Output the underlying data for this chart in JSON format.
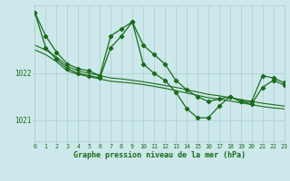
{
  "background_color": "#cce8ea",
  "grid_color": "#aaccce",
  "line_color": "#1a6b1a",
  "xlabel": "Graphe pression niveau de la mer (hPa)",
  "ylim": [
    1020.55,
    1023.45
  ],
  "xlim": [
    0,
    23
  ],
  "yticks": [
    1021,
    1022
  ],
  "xticks": [
    0,
    1,
    2,
    3,
    4,
    5,
    6,
    7,
    8,
    9,
    10,
    11,
    12,
    13,
    14,
    15,
    16,
    17,
    18,
    19,
    20,
    21,
    22,
    23
  ],
  "line1_x": [
    0,
    1,
    2,
    3,
    4,
    5,
    6,
    7,
    8,
    9,
    10,
    11,
    12,
    13,
    14,
    15,
    16,
    17,
    18,
    19,
    20,
    21,
    22,
    23
  ],
  "line1_y": [
    1023.3,
    1022.8,
    1022.45,
    1022.2,
    1022.1,
    1022.05,
    1021.95,
    1022.8,
    1022.95,
    1023.1,
    1022.6,
    1022.4,
    1022.2,
    1021.85,
    1021.65,
    1021.5,
    1021.4,
    1021.45,
    1021.5,
    1021.4,
    1021.4,
    1021.95,
    1021.9,
    1021.8
  ],
  "line2_x": [
    0,
    1,
    2,
    3,
    4,
    5,
    6,
    7,
    8,
    9,
    10,
    11,
    12,
    13,
    14,
    15,
    16,
    17,
    18,
    19,
    20,
    21,
    22,
    23
  ],
  "line2_y": [
    1023.3,
    1022.55,
    1022.3,
    1022.1,
    1022.0,
    1021.95,
    1021.9,
    1022.55,
    1022.8,
    1023.1,
    1022.2,
    1022.0,
    1021.85,
    1021.6,
    1021.25,
    1021.05,
    1021.05,
    1021.3,
    1021.5,
    1021.4,
    1021.35,
    1021.7,
    1021.85,
    1021.75
  ],
  "line3_x": [
    0,
    1,
    2,
    3,
    4,
    5,
    6,
    7,
    8,
    9,
    10,
    11,
    12,
    13,
    14,
    15,
    16,
    17,
    18,
    19,
    20,
    21,
    22,
    23
  ],
  "line3_y": [
    1022.6,
    1022.5,
    1022.35,
    1022.15,
    1022.05,
    1022.0,
    1021.95,
    1021.9,
    1021.88,
    1021.85,
    1021.82,
    1021.78,
    1021.74,
    1021.7,
    1021.65,
    1021.6,
    1021.55,
    1021.52,
    1021.48,
    1021.44,
    1021.4,
    1021.36,
    1021.33,
    1021.3
  ],
  "line4_x": [
    0,
    1,
    2,
    3,
    4,
    5,
    6,
    7,
    8,
    9,
    10,
    11,
    12,
    13,
    14,
    15,
    16,
    17,
    18,
    19,
    20,
    21,
    22,
    23
  ],
  "line4_y": [
    1022.5,
    1022.4,
    1022.25,
    1022.05,
    1021.98,
    1021.93,
    1021.88,
    1021.83,
    1021.81,
    1021.79,
    1021.76,
    1021.72,
    1021.68,
    1021.63,
    1021.58,
    1021.53,
    1021.48,
    1021.45,
    1021.41,
    1021.37,
    1021.33,
    1021.29,
    1021.26,
    1021.24
  ]
}
